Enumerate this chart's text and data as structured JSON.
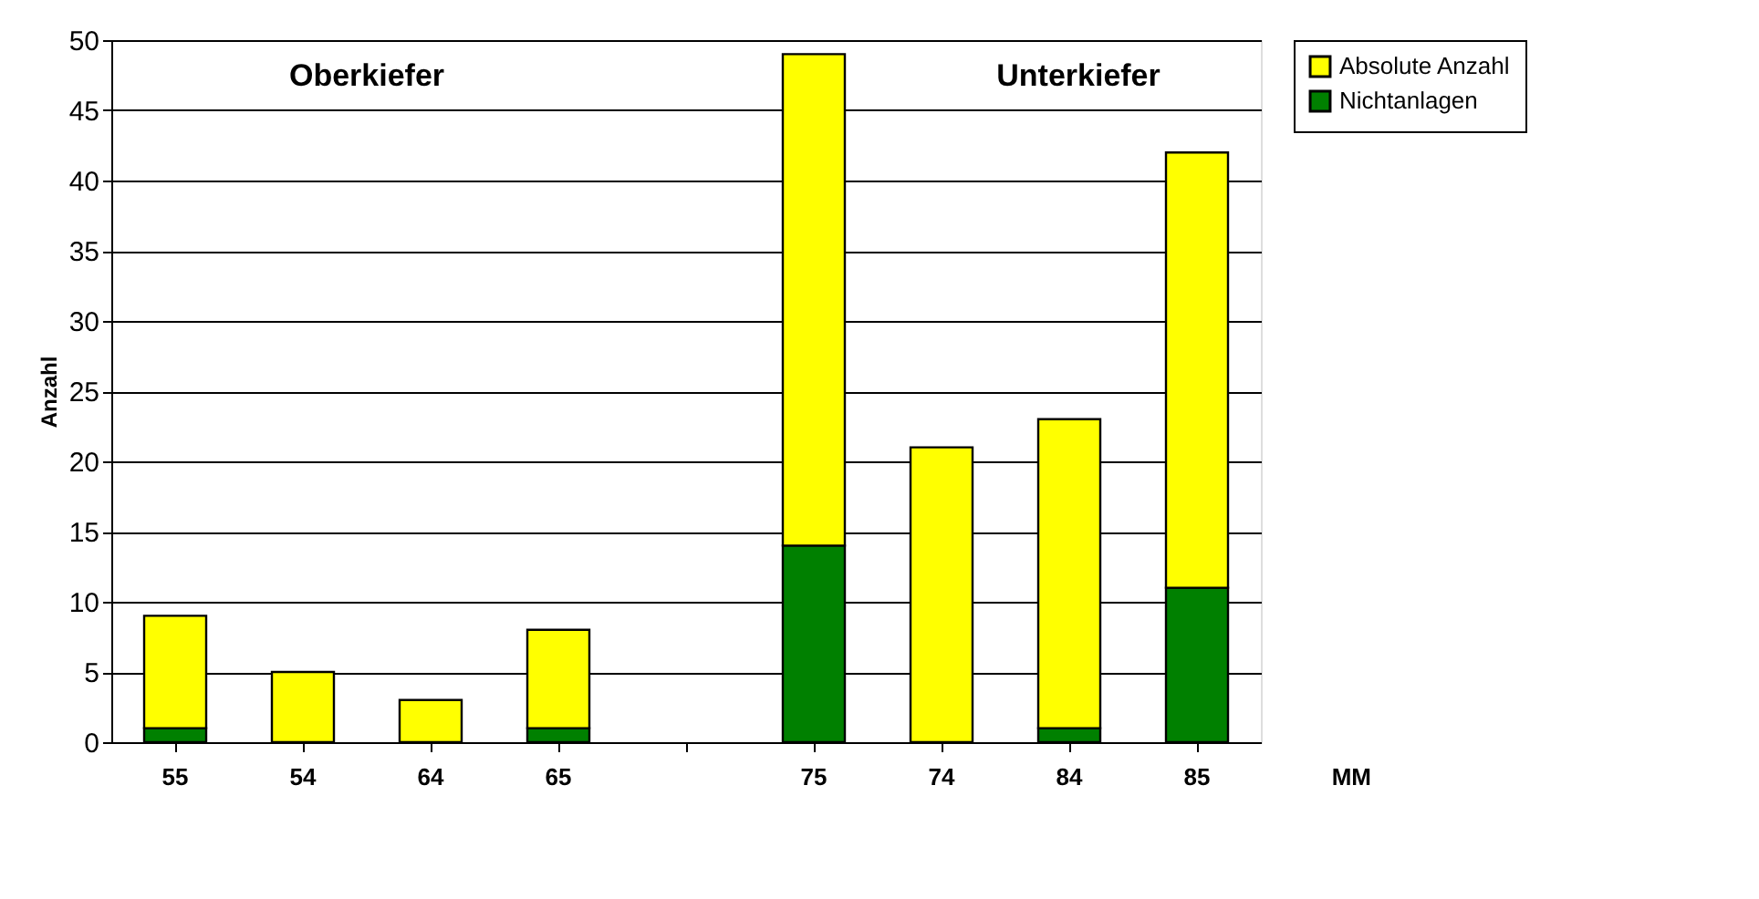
{
  "chart_data": {
    "type": "bar",
    "stacked": true,
    "xlabel": "MM",
    "ylabel": "Anzahl",
    "categories": [
      "55",
      "54",
      "64",
      "65",
      null,
      "75",
      "74",
      "84",
      "85"
    ],
    "series": [
      {
        "name": "Nichtanlagen",
        "color": "#008000",
        "values": [
          1,
          0,
          0,
          1,
          null,
          14,
          0,
          1,
          11
        ]
      },
      {
        "name": "Absolute Anzahl",
        "color": "#ffff00",
        "values": [
          8,
          5,
          3,
          7,
          null,
          35,
          21,
          22,
          31
        ]
      }
    ],
    "ylim": [
      0,
      50
    ],
    "yticks": [
      0,
      5,
      10,
      15,
      20,
      25,
      30,
      35,
      40,
      45,
      50
    ],
    "grid": "y",
    "legend": "right",
    "annotations": [
      "Oberkiefer",
      "Unterkiefer"
    ]
  }
}
